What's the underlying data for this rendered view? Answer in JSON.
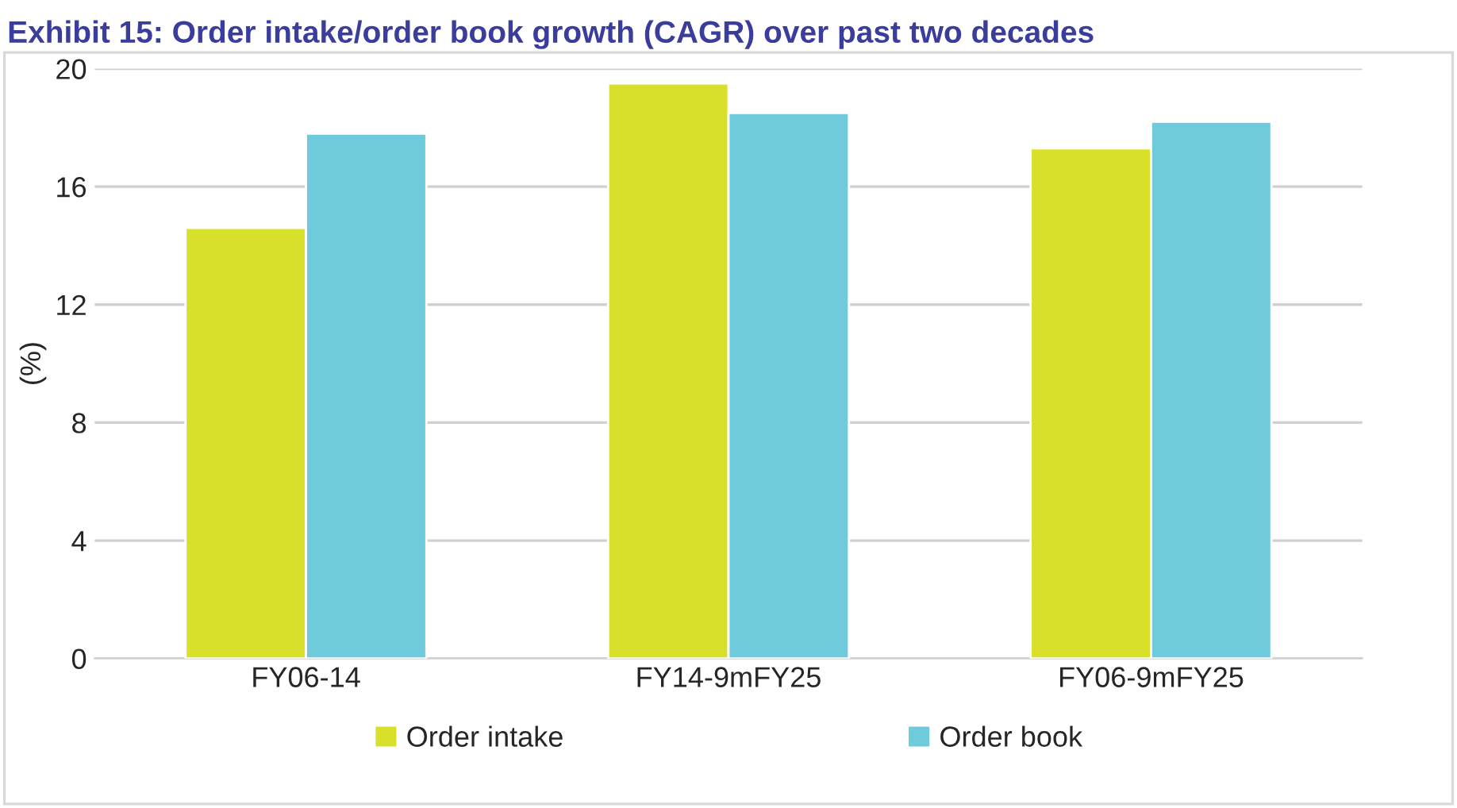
{
  "chart_data": {
    "type": "bar",
    "title": "Exhibit 15: Order intake/order book growth (CAGR) over past two decades",
    "ylabel": "(%)",
    "categories": [
      "FY06-14",
      "FY14-9mFY25",
      "FY06-9mFY25"
    ],
    "series": [
      {
        "name": "Order intake",
        "color": "#d8e02a",
        "values": [
          14.6,
          19.5,
          17.3
        ]
      },
      {
        "name": "Order book",
        "color": "#6fcbdc",
        "values": [
          17.8,
          18.5,
          18.2
        ]
      }
    ],
    "ylim": [
      0,
      20
    ],
    "yticks": [
      0,
      4,
      8,
      12,
      16,
      20
    ],
    "grid": "y",
    "legend": "bottom"
  }
}
